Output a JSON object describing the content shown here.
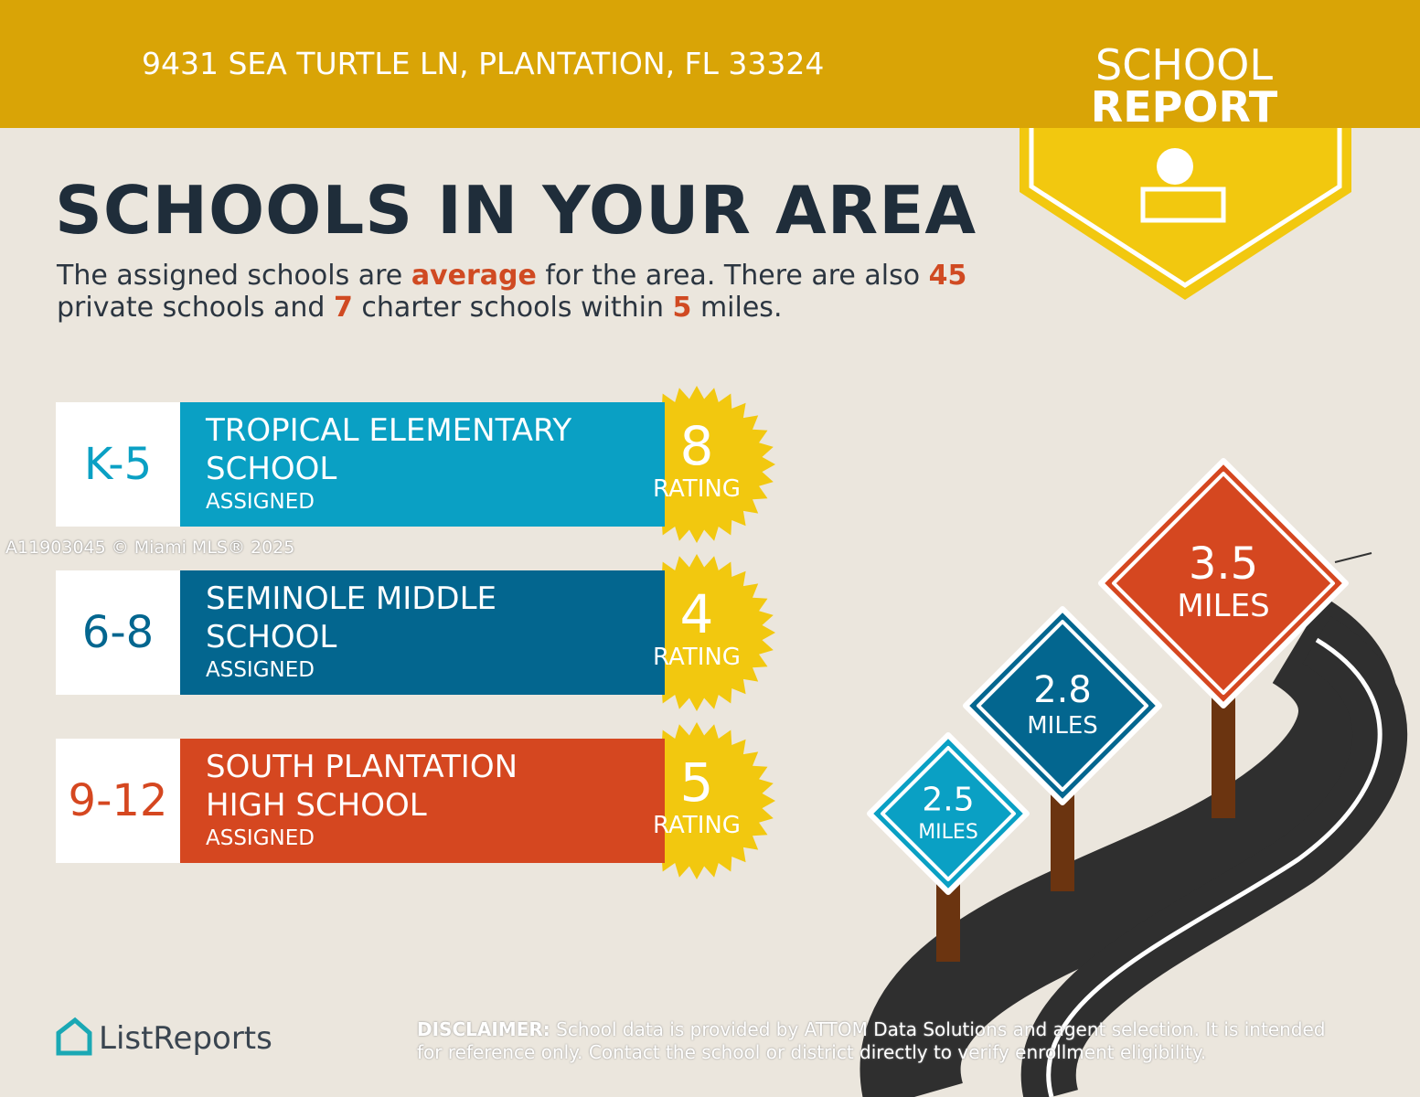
{
  "header": {
    "address": "9431 SEA TURTLE LN, PLANTATION, FL 33324"
  },
  "badge": {
    "line1": "SCHOOL",
    "line2": "REPORT"
  },
  "title": "SCHOOLS IN YOUR AREA",
  "summary": [
    "The assigned schools are ",
    "average",
    " for the area. There are also ",
    "45",
    " private schools and ",
    "7",
    " charter schools within ",
    "5",
    " miles."
  ],
  "schools": [
    {
      "grades": "K-5",
      "name": [
        "TROPICAL ELEMENTARY",
        "SCHOOL"
      ],
      "status": "ASSIGNED",
      "rating": 8,
      "rating_label": "RATING"
    },
    {
      "grades": "6-8",
      "name": [
        "SEMINOLE MIDDLE",
        "SCHOOL"
      ],
      "status": "ASSIGNED",
      "rating": 4,
      "rating_label": "RATING"
    },
    {
      "grades": "9-12",
      "name": [
        "SOUTH PLANTATION",
        "HIGH SCHOOL"
      ],
      "status": "ASSIGNED",
      "rating": 5,
      "rating_label": "RATING"
    }
  ],
  "signs": [
    {
      "distance": 2.5,
      "unit": "MILES"
    },
    {
      "distance": 2.8,
      "unit": "MILES"
    },
    {
      "distance": 3.5,
      "unit": "MILES"
    }
  ],
  "watermark": "A11903045 © Miami MLS® 2025",
  "logo": "ListReports",
  "disclaimer": {
    "label": "DISCLAIMER:",
    "text": " School data is provided by ATTOM Data Solutions and agent selection. It is intended for reference only. Contact the school or district directly to verify enrollment eligibility."
  }
}
